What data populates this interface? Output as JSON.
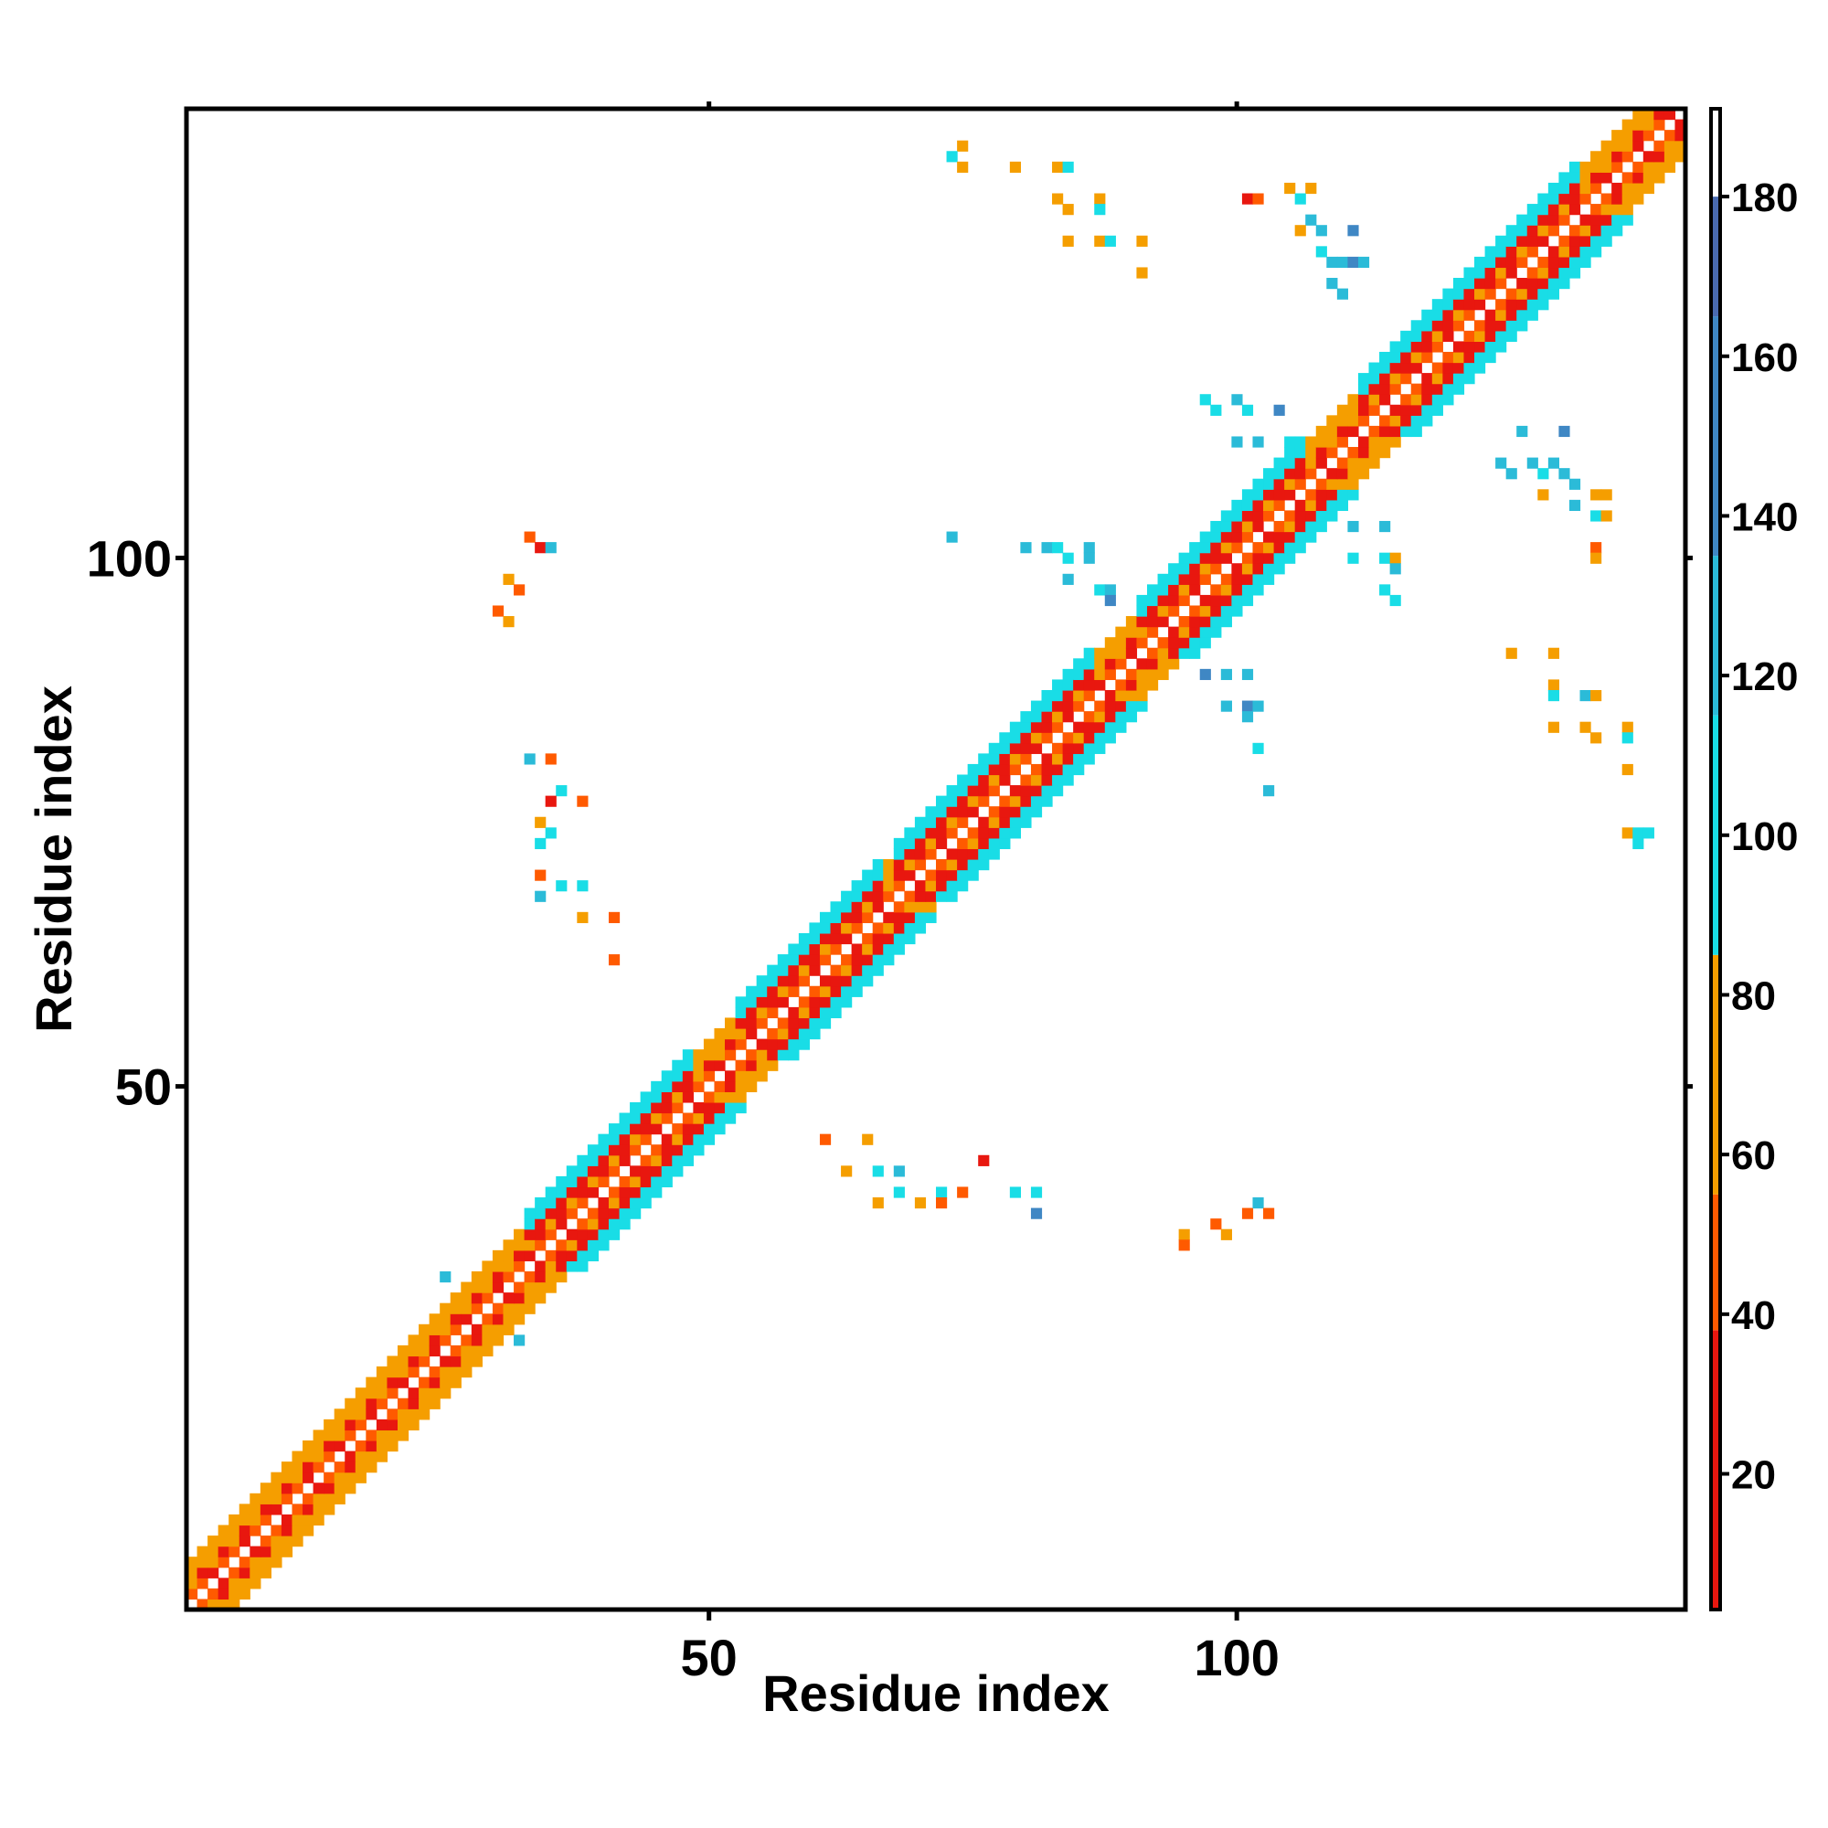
{
  "chart_data": {
    "type": "heatmap",
    "title": "",
    "xlabel": "Residue index",
    "ylabel": "Residue index",
    "xlim": [
      1,
      142
    ],
    "ylim": [
      1,
      142
    ],
    "x_ticks": [
      50,
      100
    ],
    "y_ticks": [
      50,
      100
    ],
    "grid": false,
    "colorbar": {
      "placement": "right",
      "range": [
        3,
        191
      ],
      "ticks": [
        20,
        40,
        60,
        80,
        100,
        120,
        140,
        160,
        180
      ],
      "colors": {
        "red": "#e8170f",
        "orange_red": "#ff5a00",
        "orange": "#f59e00",
        "cyan": "#19dde6",
        "light_blue": "#2bbbd8",
        "steel_blue": "#3f87c4",
        "dark_blue": "#4a6bb0",
        "white": "#ffffff"
      }
    },
    "diagonal_band": {
      "description": "contacts i-j with |i-j| between 2 and 5, colored by distance class",
      "cells": "generated along the diagonal for residues 1-142"
    },
    "off_diagonal_clusters": [
      {
        "x": 33,
        "y": 102,
        "value": 40
      },
      {
        "x": 34,
        "y": 101,
        "value": 30
      },
      {
        "x": 35,
        "y": 101,
        "value": 120
      },
      {
        "x": 31,
        "y": 98,
        "value": 60
      },
      {
        "x": 32,
        "y": 97,
        "value": 40
      },
      {
        "x": 30,
        "y": 95,
        "value": 50
      },
      {
        "x": 31,
        "y": 94,
        "value": 60
      },
      {
        "x": 33,
        "y": 81,
        "value": 130
      },
      {
        "x": 35,
        "y": 81,
        "value": 40
      },
      {
        "x": 36,
        "y": 78,
        "value": 110
      },
      {
        "x": 35,
        "y": 77,
        "value": 30
      },
      {
        "x": 38,
        "y": 77,
        "value": 40
      },
      {
        "x": 34,
        "y": 75,
        "value": 70
      },
      {
        "x": 35,
        "y": 74,
        "value": 100
      },
      {
        "x": 34,
        "y": 73,
        "value": 110
      },
      {
        "x": 34,
        "y": 70,
        "value": 50
      },
      {
        "x": 36,
        "y": 69,
        "value": 110
      },
      {
        "x": 38,
        "y": 69,
        "value": 100
      },
      {
        "x": 34,
        "y": 68,
        "value": 120
      },
      {
        "x": 38,
        "y": 66,
        "value": 60
      },
      {
        "x": 41,
        "y": 66,
        "value": 50
      },
      {
        "x": 41,
        "y": 62,
        "value": 40
      },
      {
        "x": 61,
        "y": 45,
        "value": 40
      },
      {
        "x": 65,
        "y": 45,
        "value": 60
      },
      {
        "x": 63,
        "y": 42,
        "value": 60
      },
      {
        "x": 66,
        "y": 42,
        "value": 110
      },
      {
        "x": 68,
        "y": 42,
        "value": 120
      },
      {
        "x": 68,
        "y": 40,
        "value": 110
      },
      {
        "x": 66,
        "y": 39,
        "value": 60
      },
      {
        "x": 72,
        "y": 40,
        "value": 110
      },
      {
        "x": 74,
        "y": 40,
        "value": 40
      },
      {
        "x": 76,
        "y": 43,
        "value": 30
      },
      {
        "x": 79,
        "y": 40,
        "value": 100
      },
      {
        "x": 81,
        "y": 40,
        "value": 110
      },
      {
        "x": 81,
        "y": 38,
        "value": 140
      },
      {
        "x": 70,
        "y": 39,
        "value": 60
      },
      {
        "x": 72,
        "y": 39,
        "value": 40
      },
      {
        "x": 95,
        "y": 36,
        "value": 60
      },
      {
        "x": 95,
        "y": 35,
        "value": 40
      },
      {
        "x": 98,
        "y": 37,
        "value": 40
      },
      {
        "x": 99,
        "y": 36,
        "value": 60
      },
      {
        "x": 101,
        "y": 38,
        "value": 40
      },
      {
        "x": 102,
        "y": 39,
        "value": 130
      },
      {
        "x": 103,
        "y": 38,
        "value": 50
      },
      {
        "x": 74,
        "y": 139,
        "value": 70
      },
      {
        "x": 73,
        "y": 138,
        "value": 110
      },
      {
        "x": 74,
        "y": 137,
        "value": 60
      },
      {
        "x": 79,
        "y": 137,
        "value": 70
      },
      {
        "x": 83,
        "y": 137,
        "value": 70
      },
      {
        "x": 84,
        "y": 137,
        "value": 110
      },
      {
        "x": 83,
        "y": 134,
        "value": 70
      },
      {
        "x": 84,
        "y": 133,
        "value": 60
      },
      {
        "x": 87,
        "y": 134,
        "value": 60
      },
      {
        "x": 87,
        "y": 133,
        "value": 110
      },
      {
        "x": 84,
        "y": 130,
        "value": 70
      },
      {
        "x": 87,
        "y": 130,
        "value": 70
      },
      {
        "x": 88,
        "y": 130,
        "value": 110
      },
      {
        "x": 91,
        "y": 130,
        "value": 70
      },
      {
        "x": 91,
        "y": 127,
        "value": 70
      },
      {
        "x": 101,
        "y": 134,
        "value": 30
      },
      {
        "x": 102,
        "y": 134,
        "value": 40
      },
      {
        "x": 105,
        "y": 135,
        "value": 70
      },
      {
        "x": 107,
        "y": 135,
        "value": 70
      },
      {
        "x": 106,
        "y": 134,
        "value": 110
      },
      {
        "x": 107,
        "y": 132,
        "value": 120
      },
      {
        "x": 108,
        "y": 131,
        "value": 130
      },
      {
        "x": 106,
        "y": 131,
        "value": 70
      },
      {
        "x": 111,
        "y": 131,
        "value": 140
      },
      {
        "x": 108,
        "y": 129,
        "value": 110
      },
      {
        "x": 109,
        "y": 128,
        "value": 130
      },
      {
        "x": 110,
        "y": 128,
        "value": 120
      },
      {
        "x": 111,
        "y": 128,
        "value": 140
      },
      {
        "x": 112,
        "y": 128,
        "value": 130
      },
      {
        "x": 109,
        "y": 126,
        "value": 130
      },
      {
        "x": 110,
        "y": 125,
        "value": 130
      },
      {
        "x": 97,
        "y": 115,
        "value": 110
      },
      {
        "x": 98,
        "y": 114,
        "value": 110
      },
      {
        "x": 100,
        "y": 115,
        "value": 130
      },
      {
        "x": 101,
        "y": 114,
        "value": 110
      },
      {
        "x": 104,
        "y": 114,
        "value": 140
      },
      {
        "x": 100,
        "y": 111,
        "value": 130
      },
      {
        "x": 102,
        "y": 111,
        "value": 120
      },
      {
        "x": 105,
        "y": 111,
        "value": 110
      },
      {
        "x": 73,
        "y": 102,
        "value": 130
      },
      {
        "x": 80,
        "y": 101,
        "value": 130
      },
      {
        "x": 82,
        "y": 101,
        "value": 120
      },
      {
        "x": 83,
        "y": 101,
        "value": 110
      },
      {
        "x": 86,
        "y": 101,
        "value": 130
      },
      {
        "x": 84,
        "y": 100,
        "value": 110
      },
      {
        "x": 86,
        "y": 100,
        "value": 120
      },
      {
        "x": 84,
        "y": 98,
        "value": 130
      },
      {
        "x": 87,
        "y": 97,
        "value": 110
      },
      {
        "x": 88,
        "y": 97,
        "value": 120
      },
      {
        "x": 88,
        "y": 96,
        "value": 140
      },
      {
        "x": 97,
        "y": 89,
        "value": 140
      },
      {
        "x": 99,
        "y": 89,
        "value": 120
      },
      {
        "x": 101,
        "y": 89,
        "value": 130
      },
      {
        "x": 99,
        "y": 86,
        "value": 130
      },
      {
        "x": 101,
        "y": 86,
        "value": 140
      },
      {
        "x": 102,
        "y": 86,
        "value": 120
      },
      {
        "x": 101,
        "y": 85,
        "value": 120
      },
      {
        "x": 102,
        "y": 82,
        "value": 110
      },
      {
        "x": 103,
        "y": 78,
        "value": 120
      },
      {
        "x": 111,
        "y": 103,
        "value": 120
      },
      {
        "x": 114,
        "y": 103,
        "value": 130
      },
      {
        "x": 111,
        "y": 100,
        "value": 110
      },
      {
        "x": 114,
        "y": 100,
        "value": 110
      },
      {
        "x": 115,
        "y": 100,
        "value": 70
      },
      {
        "x": 115,
        "y": 99,
        "value": 120
      },
      {
        "x": 114,
        "y": 97,
        "value": 110
      },
      {
        "x": 115,
        "y": 96,
        "value": 110
      },
      {
        "x": 127,
        "y": 112,
        "value": 130
      },
      {
        "x": 131,
        "y": 112,
        "value": 140
      },
      {
        "x": 125,
        "y": 109,
        "value": 130
      },
      {
        "x": 126,
        "y": 108,
        "value": 120
      },
      {
        "x": 128,
        "y": 109,
        "value": 130
      },
      {
        "x": 129,
        "y": 108,
        "value": 110
      },
      {
        "x": 130,
        "y": 109,
        "value": 130
      },
      {
        "x": 131,
        "y": 108,
        "value": 120
      },
      {
        "x": 132,
        "y": 107,
        "value": 120
      },
      {
        "x": 129,
        "y": 106,
        "value": 70
      },
      {
        "x": 132,
        "y": 105,
        "value": 130
      },
      {
        "x": 134,
        "y": 106,
        "value": 60
      },
      {
        "x": 135,
        "y": 106,
        "value": 70
      },
      {
        "x": 134,
        "y": 104,
        "value": 110
      },
      {
        "x": 135,
        "y": 104,
        "value": 70
      },
      {
        "x": 134,
        "y": 101,
        "value": 40
      },
      {
        "x": 134,
        "y": 100,
        "value": 70
      },
      {
        "x": 126,
        "y": 91,
        "value": 70
      },
      {
        "x": 130,
        "y": 91,
        "value": 70
      },
      {
        "x": 130,
        "y": 88,
        "value": 70
      },
      {
        "x": 130,
        "y": 87,
        "value": 110
      },
      {
        "x": 133,
        "y": 87,
        "value": 120
      },
      {
        "x": 134,
        "y": 87,
        "value": 70
      },
      {
        "x": 130,
        "y": 84,
        "value": 70
      },
      {
        "x": 133,
        "y": 84,
        "value": 70
      },
      {
        "x": 134,
        "y": 83,
        "value": 60
      },
      {
        "x": 137,
        "y": 84,
        "value": 70
      },
      {
        "x": 137,
        "y": 83,
        "value": 110
      },
      {
        "x": 137,
        "y": 80,
        "value": 70
      },
      {
        "x": 137,
        "y": 74,
        "value": 60
      },
      {
        "x": 138,
        "y": 74,
        "value": 110
      },
      {
        "x": 139,
        "y": 74,
        "value": 100
      },
      {
        "x": 138,
        "y": 73,
        "value": 110
      },
      {
        "x": 25,
        "y": 32,
        "value": 130
      },
      {
        "x": 32,
        "y": 26,
        "value": 120
      }
    ]
  }
}
